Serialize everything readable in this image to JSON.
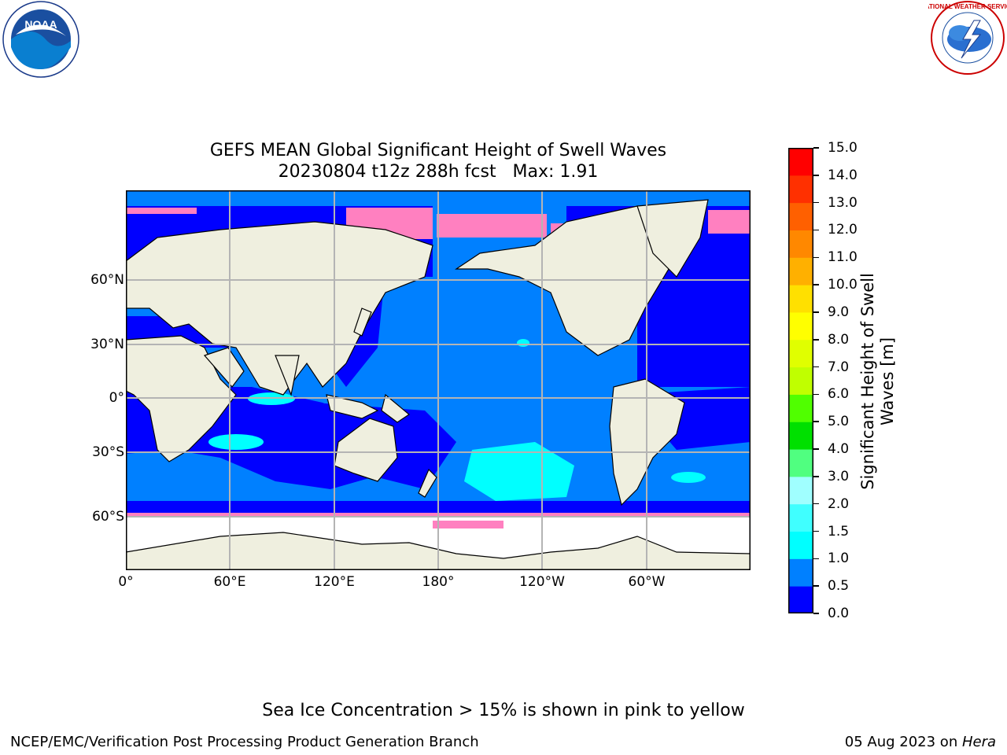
{
  "title_line1": "GEFS MEAN Global Significant Height of Swell Waves",
  "title_line2": "20230804 t12z 288h fcst   Max: 1.91",
  "lat_labels": [
    "60°N",
    "30°N",
    "0°",
    "30°S",
    "60°S"
  ],
  "lon_labels": [
    "0°",
    "60°E",
    "120°E",
    "180°",
    "120°W",
    "60°W"
  ],
  "colorbar": {
    "label_line1": "Significant Height of Swell",
    "label_line2": "Waves [m]",
    "ticks": [
      "0.0",
      "0.5",
      "1.0",
      "1.5",
      "2.0",
      "3.0",
      "4.0",
      "5.0",
      "6.0",
      "7.0",
      "8.0",
      "9.0",
      "10.0",
      "11.0",
      "12.0",
      "13.0",
      "14.0",
      "15.0"
    ],
    "colors": [
      "#0000ff",
      "#0080ff",
      "#00ffff",
      "#40ffff",
      "#a0ffff",
      "#50ff80",
      "#00e000",
      "#50ff00",
      "#c0ff00",
      "#e0ff00",
      "#ffff00",
      "#ffe000",
      "#ffb000",
      "#ff8800",
      "#ff6000",
      "#ff3000",
      "#ff0000"
    ]
  },
  "logos": {
    "left": "NOAA",
    "right": "NATIONAL WEATHER SERVICE"
  },
  "note": "Sea Ice Concentration > 15% is shown in pink to yellow",
  "footer_left": "NCEP/EMC/Verification Post Processing Product Generation Branch",
  "footer_right_prefix": "05 Aug 2023 on ",
  "footer_right_host": "Hera"
}
